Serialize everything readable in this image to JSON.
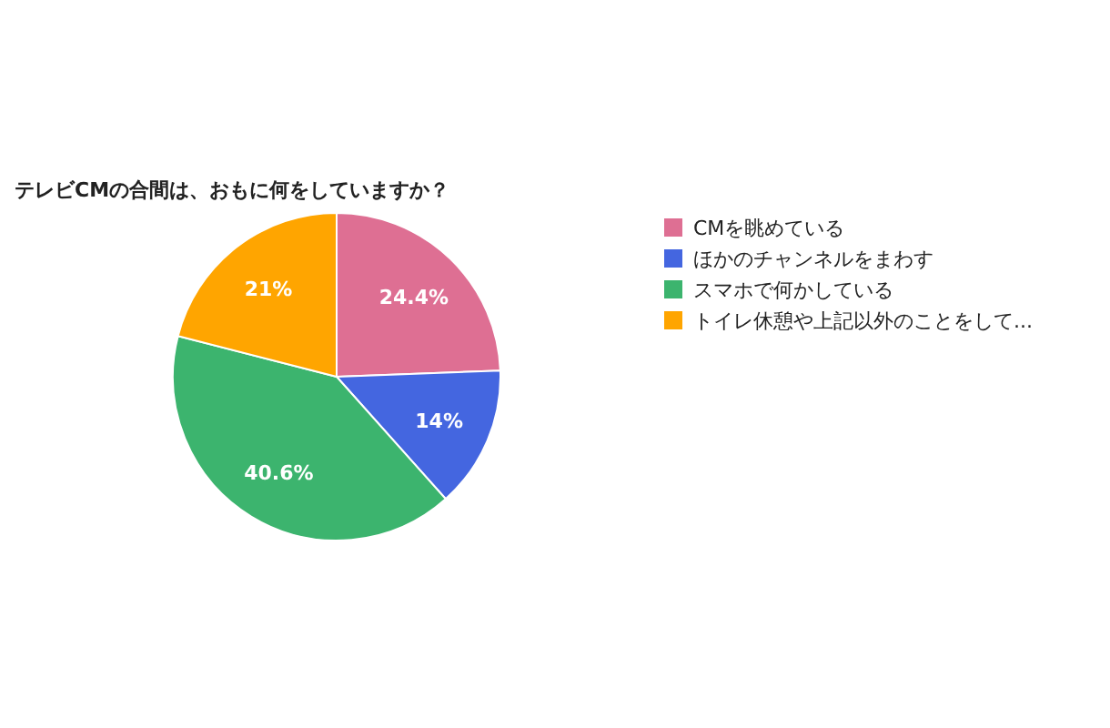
{
  "chart_data": {
    "type": "pie",
    "title": "テレビCMの合間は、おもに何をしていますか？",
    "categories": [
      "CMを眺めている",
      "ほかのチャンネルをまわす",
      "スマホで何かしている",
      "トイレ休憩や上記以外のことをして..."
    ],
    "values": [
      24.4,
      14,
      40.6,
      21
    ],
    "value_labels": [
      "24.4%",
      "14%",
      "40.6%",
      "21%"
    ],
    "colors": [
      "#de6f93",
      "#4466e0",
      "#3cb46e",
      "#ffa500"
    ],
    "legend": "right"
  }
}
